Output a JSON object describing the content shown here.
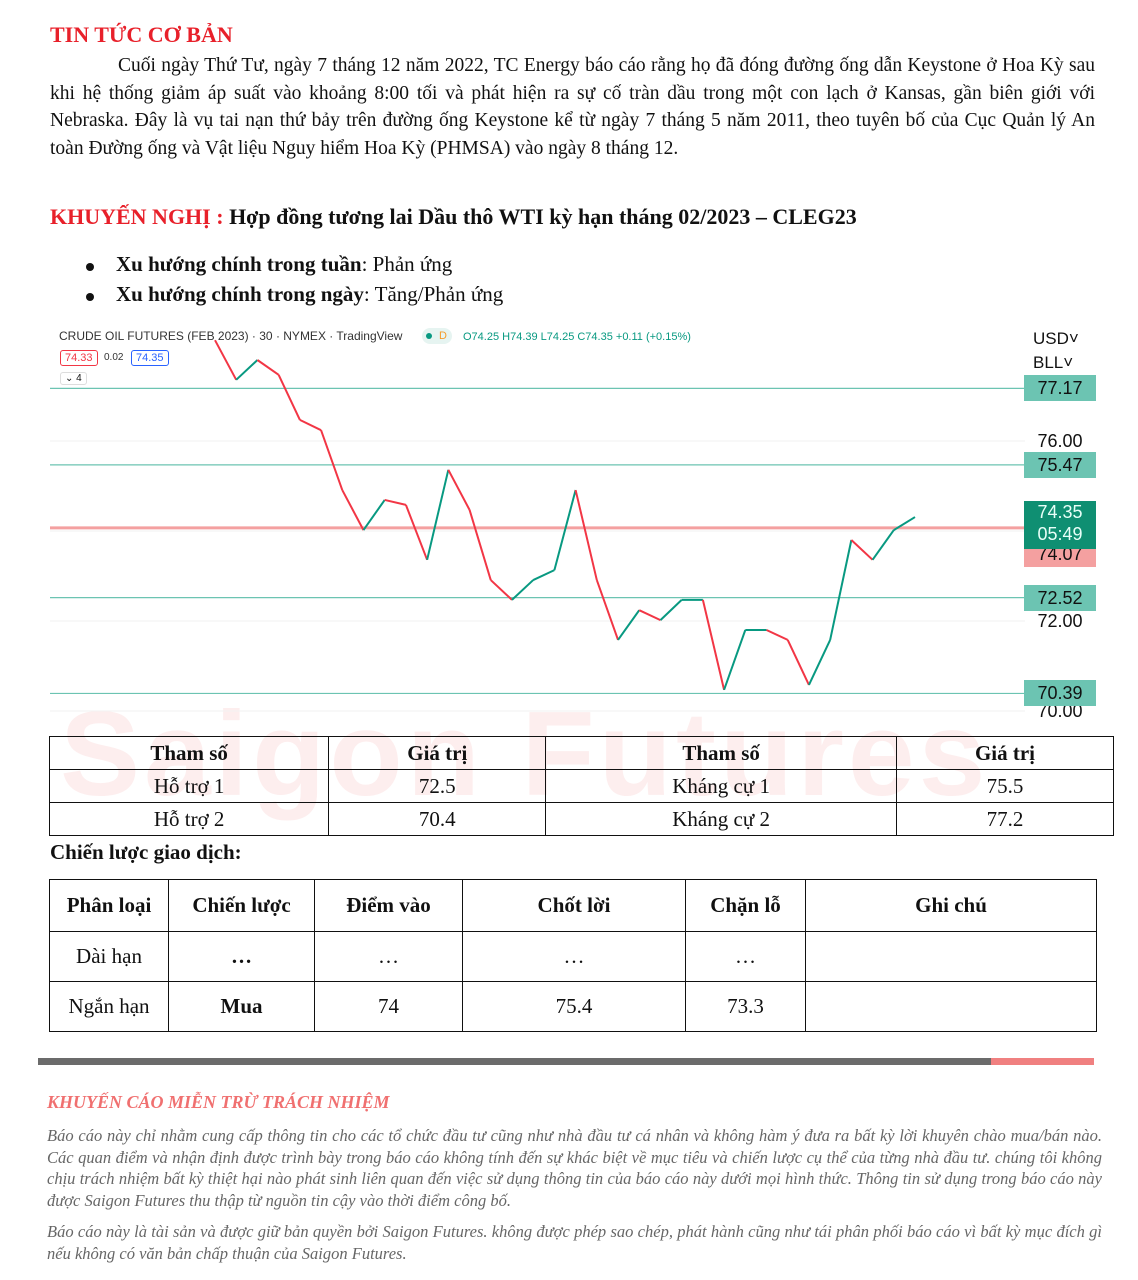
{
  "news": {
    "heading": "TIN TỨC CƠ BẢN",
    "body": "Cuối ngày Thứ Tư, ngày 7 tháng 12 năm 2022, TC Energy báo cáo rằng họ đã đóng đường ống dẫn Keystone ở Hoa Kỳ sau khi hệ thống giảm áp suất vào khoảng 8:00 tối và phát hiện ra sự cố tràn dầu trong một con lạch ở Kansas, gần biên giới với Nebraska. Đây là vụ tai nạn thứ bảy trên đường ống Keystone kể từ ngày 7 tháng 5 năm 2011, theo tuyên bố của Cục Quản lý An toàn Đường ống và Vật liệu Nguy hiểm Hoa Kỳ (PHMSA) vào ngày 8 tháng 12."
  },
  "recommendation": {
    "label": "KHUYẾN NGHỊ :",
    "text": "Hợp đồng tương lai Dầu thô WTI kỳ hạn tháng 02/2023 – CLEG23",
    "bullets": [
      {
        "label": "Xu hướng chính trong tuần",
        "value": ": Phản ứng"
      },
      {
        "label": "Xu hướng chính trong ngày",
        "value": ": Tăng/Phản ứng"
      }
    ]
  },
  "chart_data": {
    "type": "line",
    "title": "CRUDE OIL FUTURES (FEB 2023) · 30 · NYMEX · TradingView",
    "status": "D",
    "ohlc": "O74.25 H74.39 L74.25 C74.35 +0.11 (+0.15%)",
    "bid": "74.33",
    "spread": "0.02",
    "ask": "74.35",
    "indicators": "4",
    "currency": "USD",
    "unit": "BLL",
    "ylim": [
      69.8,
      78.4
    ],
    "yticks": [
      "76.00",
      "72.00",
      "70.00"
    ],
    "values": [
      78.24,
      77.36,
      77.8,
      77.47,
      76.47,
      76.24,
      74.91,
      74.02,
      74.69,
      74.58,
      73.36,
      75.36,
      74.47,
      72.91,
      72.47,
      72.91,
      73.13,
      74.91,
      72.91,
      71.58,
      72.24,
      72.02,
      72.47,
      72.47,
      70.47,
      71.8,
      71.8,
      71.58,
      70.58,
      71.58,
      73.8,
      73.36,
      74.02,
      74.31
    ],
    "levels": [
      {
        "value": 77.17,
        "label": "77.17",
        "color": "#6cc4b2"
      },
      {
        "value": 75.47,
        "label": "75.47",
        "color": "#6cc4b2"
      },
      {
        "value": 72.52,
        "label": "72.52",
        "color": "#6cc4b2"
      },
      {
        "value": 70.39,
        "label": "70.39",
        "color": "#6cc4b2"
      },
      {
        "value": 74.07,
        "label": "74.07",
        "color": "#f4a0a0"
      }
    ],
    "last_price": "74.35",
    "countdown": "05:49",
    "up_color": "#089981",
    "down_color": "#f23645"
  },
  "watermark": "Saigon Futures",
  "levels_table": {
    "headers": [
      "Tham số",
      "Giá trị",
      "Tham số",
      "Giá trị"
    ],
    "rows": [
      [
        "Hỗ trợ 1",
        "72.5",
        "Kháng cự 1",
        "75.5"
      ],
      [
        "Hỗ trợ 2",
        "70.4",
        "Kháng cự 2",
        "77.2"
      ]
    ]
  },
  "strategy": {
    "heading": "Chiến lược giao dịch:",
    "headers": [
      "Phân loại",
      "Chiến lược",
      "Điểm vào",
      "Chốt lời",
      "Chặn lỗ",
      "Ghi chú"
    ],
    "rows": [
      [
        "Dài hạn",
        "…",
        "…",
        "…",
        "…",
        ""
      ],
      [
        "Ngắn hạn",
        "Mua",
        "74",
        "75.4",
        "73.3",
        ""
      ]
    ]
  },
  "disclaimer": {
    "title": "KHUYẾN CÁO MIỄN TRỪ TRÁCH NHIỆM",
    "p1": "Báo cáo này chỉ nhằm cung cấp thông tin cho các tổ chức đầu tư cũng như nhà đầu tư cá nhân và không hàm ý đưa ra bất kỳ lời khuyên chào mua/bán nào. Các quan điểm và nhận định được trình bày trong báo cáo không tính đến sự khác biệt về mục tiêu và chiến lược cụ thể của từng nhà đầu tư. chúng tôi không chịu trách nhiệm bất kỳ thiệt hại nào phát sinh liên quan đến việc sử dụng thông tin của báo cáo này dưới mọi hình thức. Thông tin sử dụng trong báo cáo này được Saigon Futures thu thập từ nguồn tin cậy vào thời điểm công bố.",
    "p2": "Báo cáo này là tài sản và được giữ bản quyền bởi Saigon Futures. không được phép sao chép, phát hành cũng như tái phân phối báo cáo vì bất kỳ mục đích gì nếu không có văn bản chấp thuận của Saigon Futures."
  }
}
